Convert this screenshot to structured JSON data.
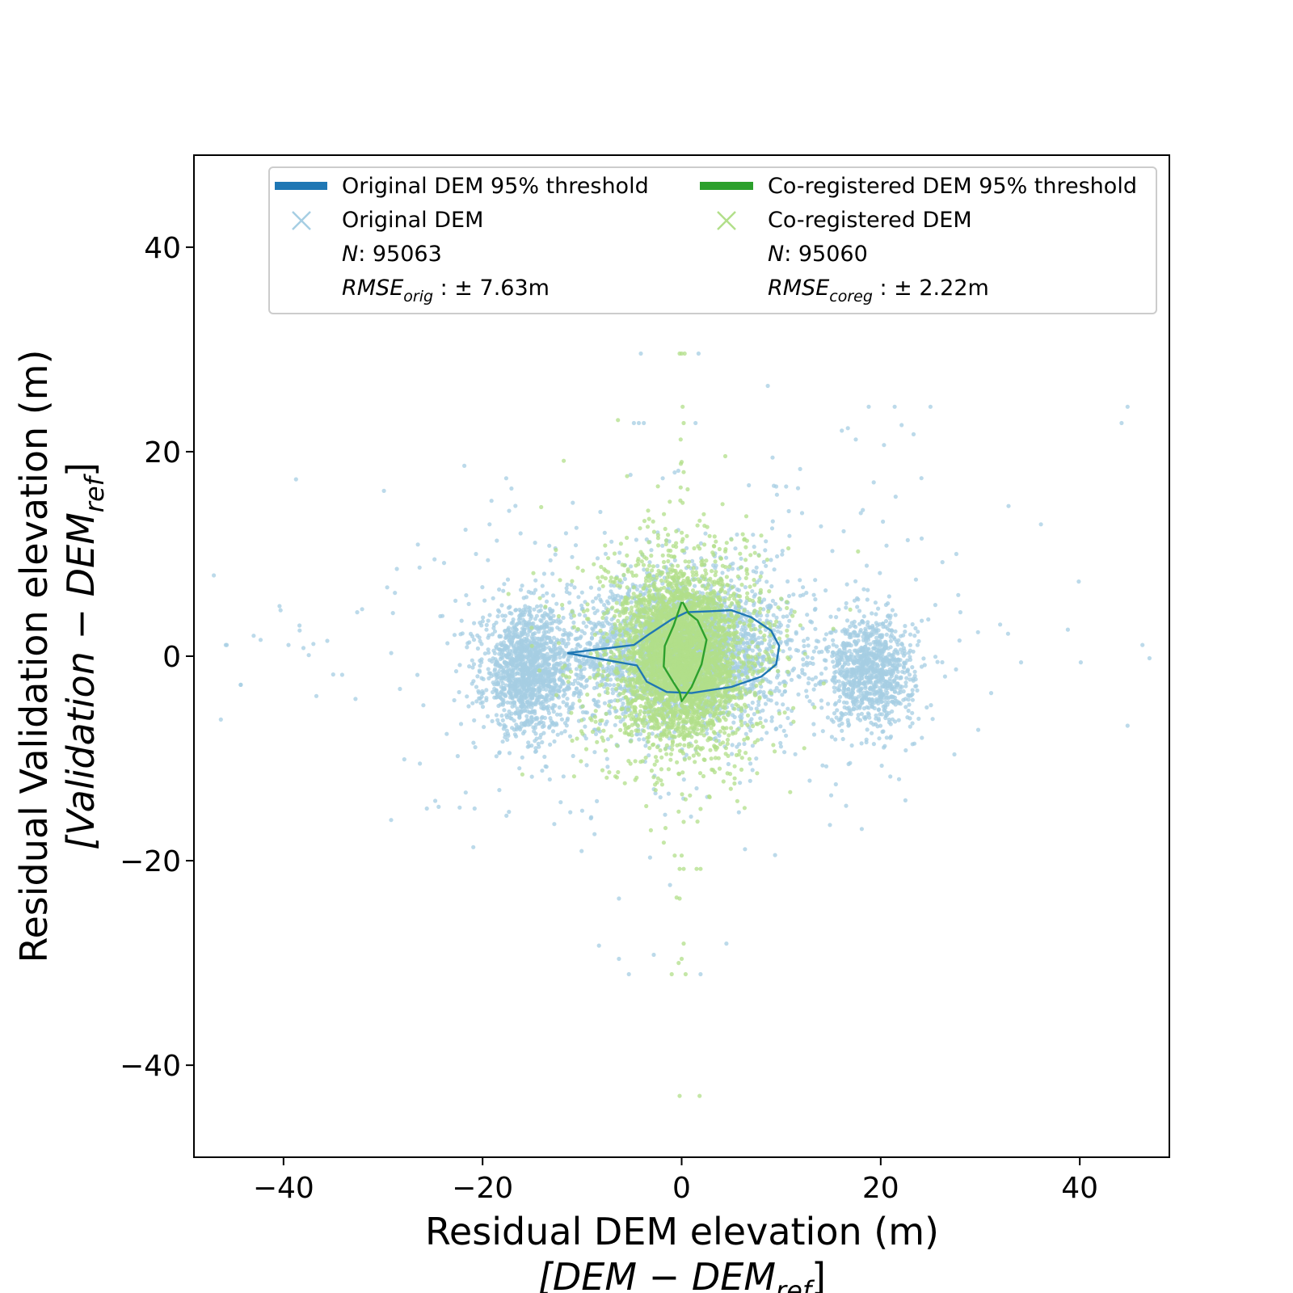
{
  "chart_data": {
    "type": "scatter",
    "title": "",
    "xlabel": "Residual DEM elevation (m)",
    "xlabel_sub": {
      "main": "[DEM − DEM",
      "subscript": "ref",
      "close": "]"
    },
    "ylabel": "Residual Validation elevation (m)",
    "ylabel_sub": {
      "main": "[Validation − DEM",
      "subscript": "ref",
      "close": "]"
    },
    "xlim": [
      -49,
      49
    ],
    "ylim": [
      -49,
      49
    ],
    "x_ticks": [
      -40,
      -20,
      0,
      20,
      40
    ],
    "y_ticks": [
      -40,
      -20,
      0,
      20,
      40
    ],
    "x_tick_labels": [
      "−40",
      "−20",
      "0",
      "20",
      "40"
    ],
    "y_tick_labels": [
      "−40",
      "−20",
      "0",
      "20",
      "40"
    ],
    "grid": false,
    "legend_placement": "top",
    "colors": {
      "original_line": "#1f77b4",
      "coreg_line": "#2ca02c",
      "original_points": "#a6cee3",
      "coreg_points": "#b2df8a"
    },
    "legend": {
      "original_threshold": "Original DEM 95% threshold",
      "coreg_threshold": "Co-registered DEM 95% threshold",
      "original_name": "Original DEM",
      "coreg_name": "Co-registered DEM",
      "n_label": "N",
      "original_n": ": 95063",
      "coreg_n": ": 95060",
      "rmse_label": "RMSE",
      "original_rmse_sub": "orig",
      "coreg_rmse_sub": "coreg",
      "original_rmse_value": " : ± 7.63m",
      "coreg_rmse_value": " : ± 2.22m"
    },
    "series": [
      {
        "name": "Original DEM 95% threshold",
        "kind": "line",
        "x": [
          -11.5,
          -4.8,
          -3.2,
          -1.0,
          0.5,
          3.0,
          5.0,
          7.0,
          9.0,
          9.8,
          9.5,
          8.0,
          5.0,
          1.0,
          -1.5,
          -3.5,
          -4.5,
          -11.5
        ],
        "y": [
          0.3,
          1.1,
          2.2,
          3.6,
          4.3,
          4.4,
          4.5,
          3.8,
          2.5,
          1.0,
          -0.8,
          -2.0,
          -3.0,
          -3.6,
          -3.5,
          -2.5,
          -0.9,
          0.3
        ]
      },
      {
        "name": "Co-registered DEM 95% threshold",
        "kind": "line",
        "x": [
          0.1,
          0.7,
          1.6,
          2.5,
          2.0,
          1.0,
          0.3,
          0.0,
          -0.2,
          -0.8,
          -1.8,
          -1.7,
          -0.8,
          0.0
        ],
        "y": [
          5.3,
          4.2,
          3.5,
          1.6,
          -0.8,
          -3.0,
          -4.0,
          -4.4,
          -3.5,
          -2.6,
          -1.0,
          1.0,
          3.0,
          5.3
        ]
      },
      {
        "name": "Original DEM",
        "kind": "scatter",
        "n": 95063,
        "clusters": [
          {
            "cx": 0.0,
            "cy": 0.5,
            "sx": 5.5,
            "sy": 3.5,
            "weight": 0.45
          },
          {
            "cx": -15.5,
            "cy": -1.5,
            "sx": 2.2,
            "sy": 3.0,
            "weight": 0.25
          },
          {
            "cx": 19.0,
            "cy": -1.5,
            "sx": 2.2,
            "sy": 2.6,
            "weight": 0.18
          },
          {
            "cx": 0.0,
            "cy": 0.0,
            "sx": 12.0,
            "sy": 8.0,
            "weight": 0.12
          }
        ],
        "outliers": [
          [
            -47,
            7.9
          ],
          [
            -46.3,
            -6.2
          ],
          [
            -45.7,
            1.1
          ],
          [
            -44.3,
            -2.8
          ],
          [
            -43.0,
            2.0
          ],
          [
            -40.3,
            4.5
          ],
          [
            -39.5,
            1.1
          ],
          [
            -38.4,
            3.0
          ],
          [
            -36.7,
            -3.9
          ],
          [
            -35.6,
            1.5
          ],
          [
            -32.1,
            4.6
          ],
          [
            -28.3,
            -3.2
          ],
          [
            -26.3,
            -10.5
          ],
          [
            -25.6,
            -14.9
          ],
          [
            -23.6,
            -7.6
          ],
          [
            -22.3,
            -14.8
          ],
          [
            -20.8,
            -14.9
          ],
          [
            -17.6,
            -15.6
          ],
          [
            -17.1,
            16.4
          ],
          [
            -16.7,
            14.7
          ],
          [
            -19.3,
            12.9
          ],
          [
            -13.3,
            10.8
          ],
          [
            -11.0,
            9.7
          ],
          [
            -9.7,
            5.3
          ],
          [
            -6.3,
            -23.7
          ],
          [
            -5.3,
            -31.1
          ],
          [
            -6.3,
            -29.6
          ],
          [
            -2.8,
            -29.2
          ],
          [
            1.9,
            -31.1
          ],
          [
            4.5,
            -28.1
          ],
          [
            -4.1,
            29.6
          ],
          [
            1.7,
            29.6
          ],
          [
            -3.8,
            22.8
          ],
          [
            -4.3,
            22.8
          ],
          [
            -4.8,
            22.8
          ],
          [
            1.4,
            22.8
          ],
          [
            -1.9,
            17.4
          ],
          [
            9.5,
            16.6
          ],
          [
            10.5,
            16.6
          ],
          [
            11.9,
            18.3
          ],
          [
            16.7,
            22.3
          ],
          [
            17.5,
            21.2
          ],
          [
            18.8,
            24.4
          ],
          [
            21.4,
            24.4
          ],
          [
            22.1,
            22.6
          ],
          [
            23.3,
            21.7
          ],
          [
            25.0,
            24.4
          ],
          [
            21.5,
            15.6
          ],
          [
            19.3,
            17.0
          ],
          [
            18.2,
            14.3
          ],
          [
            18.0,
            14.0
          ],
          [
            14.0,
            12.7
          ],
          [
            12.1,
            14.0
          ],
          [
            36.1,
            12.9
          ],
          [
            39.9,
            7.3
          ],
          [
            38.8,
            2.6
          ],
          [
            44.8,
            24.4
          ],
          [
            44.2,
            22.8
          ],
          [
            44.8,
            -6.8
          ],
          [
            46.3,
            1.1
          ],
          [
            47.0,
            -0.2
          ],
          [
            40.1,
            -0.6
          ],
          [
            34.1,
            -0.6
          ],
          [
            32.0,
            3.1
          ],
          [
            31.1,
            -3.6
          ],
          [
            27.4,
            -9.6
          ],
          [
            29.8,
            -7.2
          ],
          [
            14.9,
            -16.5
          ],
          [
            18.1,
            -16.9
          ],
          [
            27.6,
            10.0
          ],
          [
            26.2,
            9.2
          ],
          [
            28.0,
            4.3
          ],
          [
            -40.4,
            4.9
          ],
          [
            -32.6,
            4.3
          ],
          [
            -42.3,
            1.6
          ],
          [
            -45.8,
            1.1
          ],
          [
            -44.3,
            -2.8
          ],
          [
            -38.0,
            0.8
          ],
          [
            -37.0,
            1.2
          ]
        ]
      },
      {
        "name": "Co-registered DEM",
        "kind": "scatter",
        "n": 95060,
        "clusters": [
          {
            "cx": 0.0,
            "cy": 0.0,
            "sx": 2.8,
            "sy": 4.0,
            "weight": 0.75
          },
          {
            "cx": 0.0,
            "cy": 0.0,
            "sx": 5.5,
            "sy": 6.0,
            "weight": 0.25
          }
        ],
        "outliers": [
          [
            0.0,
            29.6
          ],
          [
            0.3,
            29.6
          ],
          [
            -0.2,
            29.6
          ],
          [
            0.1,
            24.4
          ],
          [
            0.2,
            22.8
          ],
          [
            -0.1,
            21.2
          ],
          [
            0.0,
            19.0
          ],
          [
            0.2,
            18.0
          ],
          [
            -0.1,
            16.5
          ],
          [
            0.1,
            15.0
          ],
          [
            0.0,
            -19.5
          ],
          [
            -0.2,
            -20.8
          ],
          [
            0.2,
            -20.8
          ],
          [
            -0.5,
            -23.6
          ],
          [
            -0.2,
            -23.7
          ],
          [
            0.2,
            -28.1
          ],
          [
            0.0,
            -29.6
          ],
          [
            -0.3,
            -30.0
          ],
          [
            -1.0,
            -31.1
          ],
          [
            0.4,
            -31.1
          ],
          [
            -0.2,
            -43.0
          ],
          [
            1.8,
            -43.0
          ],
          [
            1.9,
            -20.8
          ],
          [
            1.5,
            -20.8
          ],
          [
            -0.7,
            -19.5
          ],
          [
            0.2,
            -16.2
          ],
          [
            -0.3,
            -15.2
          ],
          [
            0.4,
            -14.0
          ]
        ]
      }
    ]
  }
}
